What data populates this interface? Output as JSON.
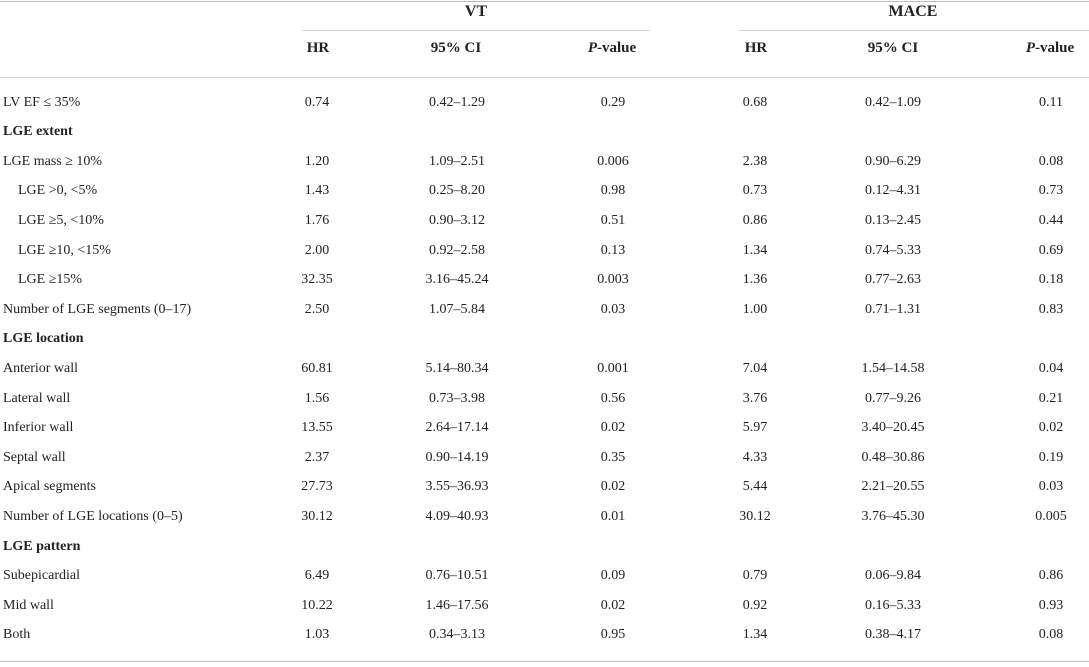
{
  "groups": {
    "vt": "VT",
    "mace": "MACE"
  },
  "columns": {
    "hr": "HR",
    "ci": "95% CI",
    "p_italic": "P",
    "p_rest": "-value"
  },
  "rows": [
    {
      "type": "data",
      "label": "LV EF ≤ 35%",
      "indent": false,
      "vt": [
        "0.74",
        "0.42–1.29",
        "0.29"
      ],
      "mace": [
        "0.68",
        "0.42–1.09",
        "0.11"
      ]
    },
    {
      "type": "section",
      "label": "LGE extent"
    },
    {
      "type": "data",
      "label": "LGE mass ≥ 10%",
      "indent": false,
      "vt": [
        "1.20",
        "1.09–2.51",
        "0.006"
      ],
      "mace": [
        "2.38",
        "0.90–6.29",
        "0.08"
      ]
    },
    {
      "type": "data",
      "label": "LGE >0, <5%",
      "indent": true,
      "vt": [
        "1.43",
        "0.25–8.20",
        "0.98"
      ],
      "mace": [
        "0.73",
        "0.12–4.31",
        "0.73"
      ]
    },
    {
      "type": "data",
      "label": "LGE ≥5, <10%",
      "indent": true,
      "vt": [
        "1.76",
        "0.90–3.12",
        "0.51"
      ],
      "mace": [
        "0.86",
        "0.13–2.45",
        "0.44"
      ]
    },
    {
      "type": "data",
      "label": "LGE ≥10, <15%",
      "indent": true,
      "vt": [
        "2.00",
        "0.92–2.58",
        "0.13"
      ],
      "mace": [
        "1.34",
        "0.74–5.33",
        "0.69"
      ]
    },
    {
      "type": "data",
      "label": "LGE ≥15%",
      "indent": true,
      "vt": [
        "32.35",
        "3.16–45.24",
        "0.003"
      ],
      "mace": [
        "1.36",
        "0.77–2.63",
        "0.18"
      ]
    },
    {
      "type": "data",
      "label": "Number of LGE segments (0–17)",
      "indent": false,
      "vt": [
        "2.50",
        "1.07–5.84",
        "0.03"
      ],
      "mace": [
        "1.00",
        "0.71–1.31",
        "0.83"
      ]
    },
    {
      "type": "section",
      "label": "LGE location"
    },
    {
      "type": "data",
      "label": "Anterior wall",
      "indent": false,
      "vt": [
        "60.81",
        "5.14–80.34",
        "0.001"
      ],
      "mace": [
        "7.04",
        "1.54–14.58",
        "0.04"
      ]
    },
    {
      "type": "data",
      "label": "Lateral wall",
      "indent": false,
      "vt": [
        "1.56",
        "0.73–3.98",
        "0.56"
      ],
      "mace": [
        "3.76",
        "0.77–9.26",
        "0.21"
      ]
    },
    {
      "type": "data",
      "label": "Inferior wall",
      "indent": false,
      "vt": [
        "13.55",
        "2.64–17.14",
        "0.02"
      ],
      "mace": [
        "5.97",
        "3.40–20.45",
        "0.02"
      ]
    },
    {
      "type": "data",
      "label": "Septal wall",
      "indent": false,
      "vt": [
        "2.37",
        "0.90–14.19",
        "0.35"
      ],
      "mace": [
        "4.33",
        "0.48–30.86",
        "0.19"
      ]
    },
    {
      "type": "data",
      "label": "Apical segments",
      "indent": false,
      "vt": [
        "27.73",
        "3.55–36.93",
        "0.02"
      ],
      "mace": [
        "5.44",
        "2.21–20.55",
        "0.03"
      ]
    },
    {
      "type": "data",
      "label": "Number of LGE locations (0–5)",
      "indent": false,
      "vt": [
        "30.12",
        "4.09–40.93",
        "0.01"
      ],
      "mace": [
        "30.12",
        "3.76–45.30",
        "0.005"
      ]
    },
    {
      "type": "section",
      "label": "LGE pattern"
    },
    {
      "type": "data",
      "label": "Subepicardial",
      "indent": false,
      "vt": [
        "6.49",
        "0.76–10.51",
        "0.09"
      ],
      "mace": [
        "0.79",
        "0.06–9.84",
        "0.86"
      ]
    },
    {
      "type": "data",
      "label": "Mid wall",
      "indent": false,
      "vt": [
        "10.22",
        "1.46–17.56",
        "0.02"
      ],
      "mace": [
        "0.92",
        "0.16–5.33",
        "0.93"
      ]
    },
    {
      "type": "data",
      "label": "Both",
      "indent": false,
      "vt": [
        "1.03",
        "0.34–3.13",
        "0.95"
      ],
      "mace": [
        "1.34",
        "0.38–4.17",
        "0.08"
      ]
    }
  ]
}
